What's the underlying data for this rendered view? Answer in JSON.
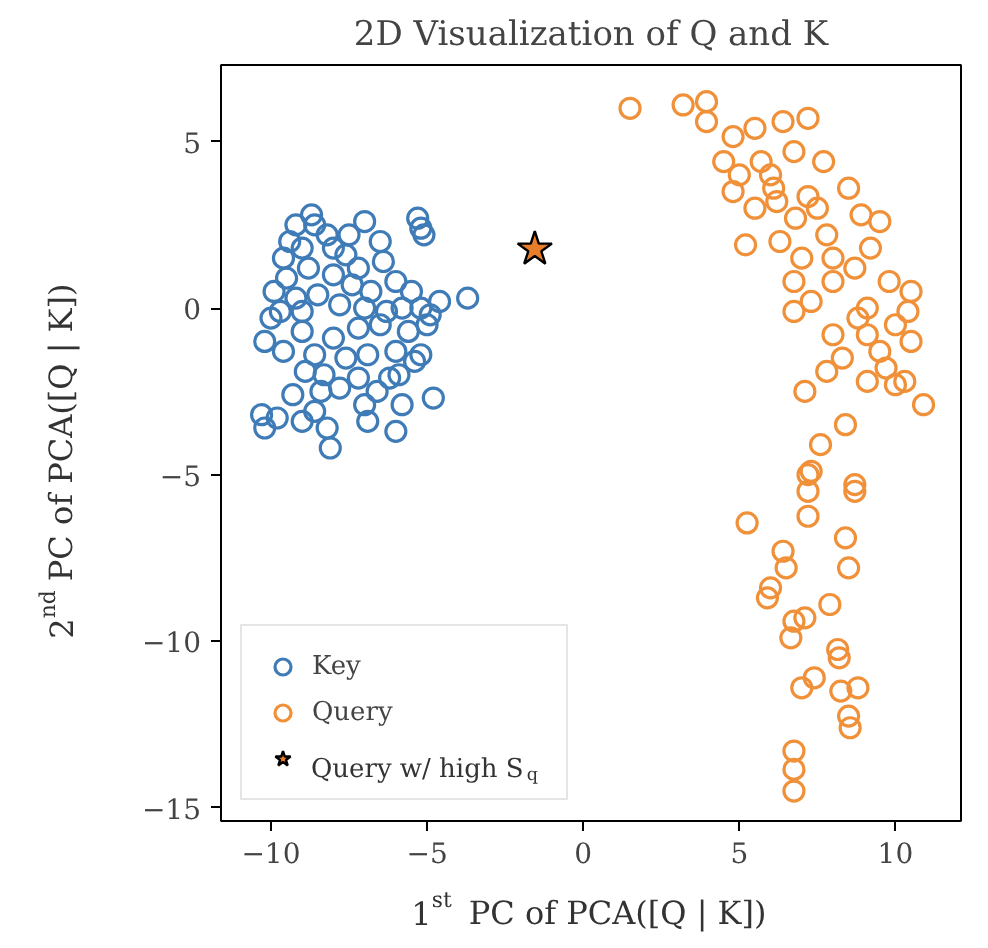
{
  "chart_data": {
    "type": "scatter",
    "title": "2D Visualization of Q and K",
    "xlabel": "1$^{st}$ PC of PCA([Q | K])",
    "ylabel": "2$^{nd}$ PC of PCA([Q | K])",
    "xlim": [
      -11.6,
      12.1
    ],
    "ylim": [
      -15.4,
      7.3
    ],
    "xticks": [
      -10,
      -5,
      0,
      5,
      10
    ],
    "yticks": [
      -15,
      -10,
      -5,
      0,
      5
    ],
    "grid": false,
    "legend": "bottom left",
    "series": [
      {
        "name": "Key",
        "color": "#3f7cb7",
        "marker": "circle",
        "x": [
          -8.7,
          -8.6,
          -9.4,
          -9.6,
          -9.0,
          -8.2,
          -7.5,
          -7.6,
          -7.2,
          -8.0,
          -8.8,
          -9.5,
          -9.9,
          -9.2,
          -8.5,
          -7.8,
          -7.0,
          -6.3,
          -5.8,
          -5.2,
          -4.6,
          -3.7,
          -5.0,
          -5.6,
          -6.5,
          -7.2,
          -8.0,
          -9.0,
          -10.0,
          -10.2,
          -9.6,
          -8.6,
          -7.6,
          -6.9,
          -6.0,
          -5.4,
          -5.2,
          -6.2,
          -7.8,
          -7.0,
          -6.9,
          -8.4,
          -8.6,
          -9.0,
          -9.8,
          -10.3,
          -10.2,
          -8.2,
          -8.1,
          -6.0,
          -5.8,
          -4.8,
          -5.3,
          -5.2,
          -5.1,
          -6.5,
          -6.4,
          -7.0,
          -8.0,
          -9.2,
          -9.0,
          -7.4,
          -6.8,
          -6.0,
          -5.5,
          -4.9,
          -9.7,
          -8.3,
          -7.2,
          -9.3,
          -8.9,
          -6.6,
          -5.9
        ],
        "values": [
          2.8,
          2.5,
          2.0,
          1.5,
          1.8,
          2.2,
          2.2,
          1.6,
          1.2,
          1.0,
          1.2,
          0.9,
          0.5,
          0.3,
          0.4,
          0.1,
          0.0,
          -0.1,
          0.0,
          0.0,
          0.2,
          0.3,
          -0.5,
          -0.7,
          -0.5,
          -0.6,
          -0.9,
          -0.7,
          -0.3,
          -1.0,
          -1.3,
          -1.4,
          -1.5,
          -1.4,
          -1.3,
          -1.6,
          -1.4,
          -2.1,
          -2.4,
          -2.9,
          -3.4,
          -2.5,
          -3.1,
          -3.4,
          -3.3,
          -3.2,
          -3.6,
          -3.6,
          -4.2,
          -3.7,
          -2.9,
          -2.7,
          2.7,
          2.4,
          2.2,
          2.0,
          1.4,
          2.6,
          1.8,
          2.5,
          -0.1,
          0.7,
          0.5,
          0.8,
          0.5,
          -0.2,
          -0.1,
          -2.0,
          -2.1,
          -2.6,
          -1.9,
          -2.5,
          -2.0
        ]
      },
      {
        "name": "Query",
        "color": "#f0913a",
        "marker": "circle",
        "x": [
          1.5,
          3.2,
          3.95,
          3.95,
          4.8,
          5.5,
          6.4,
          7.2,
          4.5,
          5.7,
          6.75,
          7.7,
          4.8,
          6.1,
          7.2,
          8.5,
          5.2,
          6.3,
          7.8,
          9.5,
          6.75,
          6.75,
          8.0,
          9.1,
          10.4,
          10.5,
          8.0,
          9.1,
          10.5,
          8.3,
          7.8,
          9.1,
          10.0,
          10.9,
          7.1,
          8.4,
          7.6,
          7.3,
          8.7,
          7.2,
          7.2,
          8.7,
          7.2,
          5.25,
          8.4,
          8.5,
          6.4,
          6.5,
          5.9,
          6.0,
          6.75,
          6.65,
          7.9,
          7.1,
          8.15,
          8.2,
          7.0,
          7.4,
          8.25,
          8.8,
          8.5,
          8.55,
          6.75,
          6.75,
          6.75,
          6.0,
          5.5,
          6.8,
          7.5,
          8.0,
          8.7,
          9.2,
          9.8,
          10.0,
          9.5,
          8.8,
          7.3,
          7.0,
          6.2,
          5.0,
          8.9,
          9.7,
          10.3
        ],
        "values": [
          6.0,
          6.1,
          6.2,
          5.6,
          5.15,
          5.4,
          5.6,
          5.7,
          4.4,
          4.4,
          4.7,
          4.4,
          3.5,
          3.6,
          3.35,
          3.6,
          1.9,
          2.0,
          2.2,
          2.6,
          0.8,
          -0.1,
          0.8,
          0.0,
          -0.1,
          0.5,
          -0.8,
          -0.8,
          -1.0,
          -1.5,
          -1.9,
          -2.2,
          -2.3,
          -2.9,
          -2.5,
          -3.5,
          -4.1,
          -4.9,
          -5.3,
          -5.0,
          -5.5,
          -5.5,
          -6.25,
          -6.45,
          -6.9,
          -7.8,
          -7.3,
          -7.8,
          -8.7,
          -8.4,
          -9.4,
          -9.9,
          -8.9,
          -9.3,
          -10.25,
          -10.5,
          -11.4,
          -11.1,
          -11.5,
          -11.4,
          -12.25,
          -12.6,
          -13.3,
          -13.85,
          -14.5,
          4.0,
          3.0,
          2.7,
          3.0,
          1.5,
          1.2,
          1.8,
          0.8,
          -0.5,
          -1.3,
          -0.3,
          0.2,
          1.5,
          3.2,
          4.0,
          2.8,
          -1.8,
          -2.2
        ]
      },
      {
        "name": "Query w/ high S$_{q}$",
        "color": "#e87d2a",
        "marker": "star",
        "x": [
          -1.55
        ],
        "values": [
          1.77
        ]
      }
    ]
  }
}
